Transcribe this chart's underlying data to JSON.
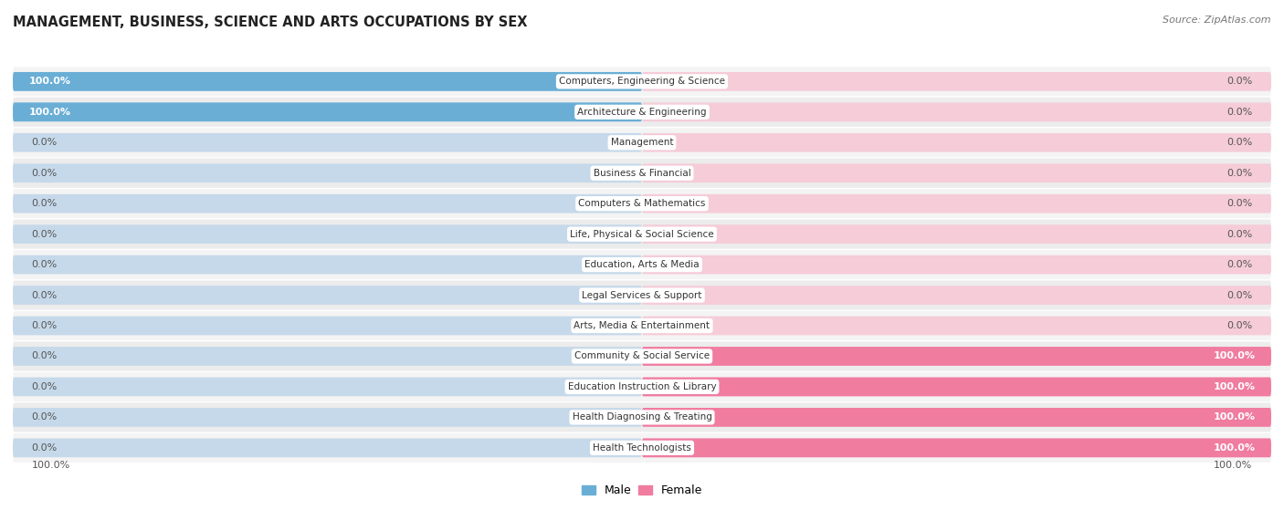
{
  "title": "MANAGEMENT, BUSINESS, SCIENCE AND ARTS OCCUPATIONS BY SEX",
  "source": "Source: ZipAtlas.com",
  "categories": [
    "Computers, Engineering & Science",
    "Architecture & Engineering",
    "Management",
    "Business & Financial",
    "Computers & Mathematics",
    "Life, Physical & Social Science",
    "Education, Arts & Media",
    "Legal Services & Support",
    "Arts, Media & Entertainment",
    "Community & Social Service",
    "Education Instruction & Library",
    "Health Diagnosing & Treating",
    "Health Technologists"
  ],
  "male_values": [
    100.0,
    100.0,
    0.0,
    0.0,
    0.0,
    0.0,
    0.0,
    0.0,
    0.0,
    0.0,
    0.0,
    0.0,
    0.0
  ],
  "female_values": [
    0.0,
    0.0,
    0.0,
    0.0,
    0.0,
    0.0,
    0.0,
    0.0,
    0.0,
    100.0,
    100.0,
    100.0,
    100.0
  ],
  "male_color": "#6aaed6",
  "female_color": "#f07ca0",
  "bar_bg_male": "#c6d9ea",
  "bar_bg_female": "#f5ccd8",
  "row_bg_light": "#f4f4f4",
  "row_bg_dark": "#e8e8e8",
  "legend_male": "Male",
  "legend_female": "Female",
  "label_outside_color": "#555555",
  "label_inside_color": "#ffffff",
  "cat_label_color": "#333333",
  "bg_color": "#ffffff"
}
